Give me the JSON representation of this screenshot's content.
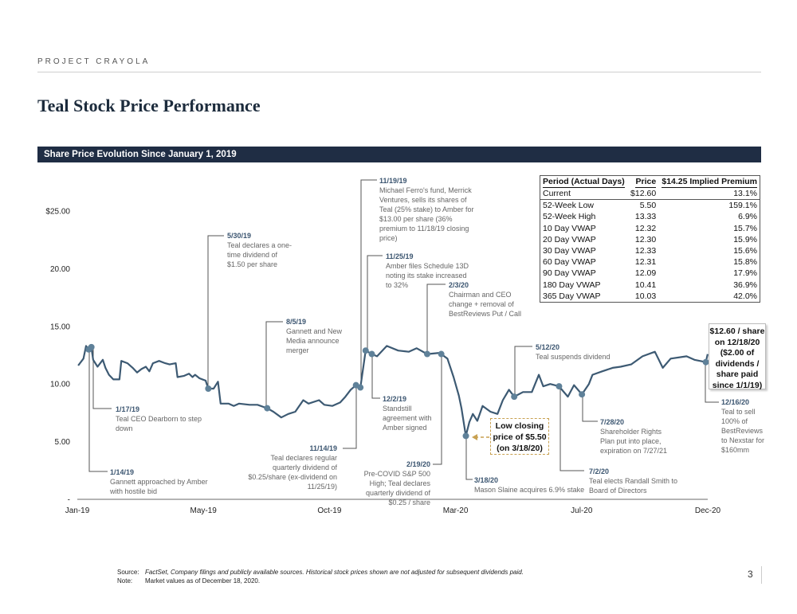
{
  "header": {
    "project": "PROJECT CRAYOLA",
    "title": "Teal Stock Price Performance",
    "section": "Share Price Evolution Since January 1, 2019"
  },
  "chart_data": {
    "type": "line",
    "title": "",
    "xlabel": "",
    "ylabel": "",
    "ylim": [
      0,
      25
    ],
    "xlim": [
      "2019-01-01",
      "2020-12-18"
    ],
    "x_ticks": [
      "Jan-19",
      "May-19",
      "Oct-19",
      "Mar-20",
      "Jul-20",
      "Dec-20"
    ],
    "y_ticks": [
      "-",
      "5.00",
      "10.00",
      "15.00",
      "20.00",
      "$25.00"
    ],
    "grid": false,
    "line_color": "#3d5a73",
    "marker_color": "#5f8199",
    "series": [
      {
        "x": [
          "2019-01-02",
          "2019-01-08",
          "2019-01-11",
          "2019-01-14",
          "2019-01-17",
          "2019-01-19",
          "2019-01-24",
          "2019-01-30",
          "2019-02-02",
          "2019-02-06",
          "2019-02-11",
          "2019-02-18",
          "2019-02-20",
          "2019-02-27",
          "2019-03-05",
          "2019-03-10",
          "2019-03-15",
          "2019-03-20",
          "2019-03-24",
          "2019-03-28",
          "2019-04-04",
          "2019-04-11",
          "2019-04-16",
          "2019-04-23",
          "2019-04-25",
          "2019-05-02",
          "2019-05-08",
          "2019-05-12",
          "2019-05-15",
          "2019-05-20",
          "2019-05-27",
          "2019-05-30",
          "2019-06-05",
          "2019-06-10",
          "2019-06-13",
          "2019-06-22",
          "2019-06-28",
          "2019-07-04",
          "2019-07-16",
          "2019-07-25",
          "2019-08-05",
          "2019-08-12",
          "2019-08-21",
          "2019-08-29",
          "2019-09-06",
          "2019-09-15",
          "2019-09-21",
          "2019-10-03",
          "2019-10-09",
          "2019-10-18",
          "2019-10-27",
          "2019-11-02",
          "2019-11-08",
          "2019-11-14",
          "2019-11-19",
          "2019-11-25",
          "2019-12-02",
          "2019-12-08",
          "2019-12-19",
          "2020-01-01",
          "2020-01-13",
          "2020-01-22",
          "2020-02-03",
          "2020-02-17",
          "2020-02-19",
          "2020-02-26",
          "2020-03-04",
          "2020-03-10",
          "2020-03-13",
          "2020-03-18",
          "2020-03-22",
          "2020-03-26",
          "2020-03-31",
          "2020-04-06",
          "2020-04-15",
          "2020-04-23",
          "2020-04-29",
          "2020-05-06",
          "2020-05-12",
          "2020-05-22",
          "2020-06-01",
          "2020-06-09",
          "2020-06-14",
          "2020-06-22",
          "2020-07-02",
          "2020-07-12",
          "2020-07-19",
          "2020-07-28",
          "2020-08-05",
          "2020-08-09",
          "2020-08-20",
          "2020-09-01",
          "2020-09-10",
          "2020-09-22",
          "2020-10-05",
          "2020-10-19",
          "2020-10-28",
          "2020-11-06",
          "2020-11-24",
          "2020-12-03",
          "2020-12-16",
          "2020-12-18"
        ],
        "y": [
          11.6,
          12.2,
          13.3,
          13.0,
          13.2,
          12.1,
          11.5,
          12.1,
          11.4,
          10.8,
          10.4,
          10.4,
          12.0,
          11.8,
          11.4,
          11.0,
          11.3,
          11.5,
          11.1,
          11.8,
          12.0,
          11.8,
          11.7,
          11.8,
          10.6,
          10.7,
          10.9,
          10.6,
          10.8,
          10.5,
          10.3,
          9.6,
          9.6,
          10.2,
          8.3,
          8.3,
          8.1,
          8.3,
          8.2,
          8.2,
          7.9,
          7.6,
          7.1,
          7.4,
          7.6,
          8.6,
          8.3,
          8.6,
          8.2,
          8.1,
          8.4,
          8.9,
          9.5,
          9.9,
          9.7,
          12.9,
          12.6,
          12.4,
          13.3,
          12.9,
          12.8,
          13.1,
          12.6,
          12.7,
          12.6,
          12.2,
          10.6,
          9.0,
          7.9,
          5.5,
          6.7,
          7.4,
          6.8,
          8.1,
          7.6,
          7.4,
          8.6,
          9.5,
          8.9,
          9.3,
          9.3,
          10.8,
          9.8,
          10.0,
          9.8,
          8.9,
          9.9,
          9.1,
          10.0,
          10.8,
          11.1,
          11.4,
          11.5,
          11.7,
          12.4,
          12.8,
          11.4,
          12.2,
          12.4,
          12.1,
          11.9,
          12.6
        ]
      }
    ],
    "annotations": [
      {
        "date": "1/14/19",
        "x": "2019-01-14",
        "y": 13.0,
        "text": "Gannett approached by Amber with hostile bid"
      },
      {
        "date": "1/17/19",
        "x": "2019-01-17",
        "y": 13.2,
        "text": "Teal CEO Dearborn to step down"
      },
      {
        "date": "5/30/19",
        "x": "2019-05-30",
        "y": 9.6,
        "text": "Teal declares a one-time dividend of $1.50 per share"
      },
      {
        "date": "8/5/19",
        "x": "2019-08-05",
        "y": 7.9,
        "text": "Gannett and New Media announce merger"
      },
      {
        "date": "11/14/19",
        "x": "2019-11-14",
        "y": 9.9,
        "text": "Teal declares regular quarterly dividend of $0.25/share (ex-dividend on 11/25/19)"
      },
      {
        "date": "11/19/19",
        "x": "2019-11-19",
        "y": 9.7,
        "text": "Michael Ferro's fund, Merrick Ventures, sells its shares of Teal (25% stake) to Amber for $13.00 per share (36% premium to 11/18/19 closing price)"
      },
      {
        "date": "11/25/19",
        "x": "2019-11-25",
        "y": 12.9,
        "text": "Amber files Schedule 13D noting its stake increased to 32%"
      },
      {
        "date": "12/2/19",
        "x": "2019-12-02",
        "y": 12.6,
        "text": "Standstill agreement with Amber signed"
      },
      {
        "date": "2/3/20",
        "x": "2020-02-03",
        "y": 12.6,
        "text": "Chairman and CEO change + removal of BestReviews Put / Call"
      },
      {
        "date": "2/19/20",
        "x": "2020-02-19",
        "y": 12.6,
        "text": "Pre-COVID S&P 500 High; Teal declares quarterly dividend of $0.25 / share"
      },
      {
        "date": "3/18/20",
        "x": "2020-03-18",
        "y": 5.5,
        "text": "Mason Slaine acquires 6.9% stake"
      },
      {
        "date": "5/12/20",
        "x": "2020-05-12",
        "y": 8.9,
        "text": "Teal suspends dividend"
      },
      {
        "date": "7/2/20",
        "x": "2020-07-02",
        "y": 9.8,
        "text": "Teal elects Randall Smith to Board of Directors"
      },
      {
        "date": "7/28/20",
        "x": "2020-07-28",
        "y": 9.1,
        "text": "Shareholder Rights Plan put into place, expiration on 7/27/21"
      },
      {
        "date": "12/16/20",
        "x": "2020-12-16",
        "y": 11.9,
        "text": "Teal to sell 100% of BestReviews to Nexstar for $160mm"
      }
    ],
    "callouts": {
      "low": "Low closing price of $5.50 (on 3/18/20)",
      "low_color": "#c8a152",
      "current": "$12.60 / share on 12/18/20 ($2.00 of dividends / share paid since 1/1/19)"
    }
  },
  "table": {
    "headers": [
      "Period (Actual Days)",
      "Price",
      "$14.25 Implied Premium"
    ],
    "rows": [
      [
        "Current",
        "$12.60",
        "13.1%"
      ],
      [
        "52-Week Low",
        "5.50",
        "159.1%"
      ],
      [
        "52-Week High",
        "13.33",
        "6.9%"
      ],
      [
        "10 Day VWAP",
        "12.32",
        "15.7%"
      ],
      [
        "20 Day VWAP",
        "12.30",
        "15.9%"
      ],
      [
        "30 Day VWAP",
        "12.33",
        "15.6%"
      ],
      [
        "60 Day VWAP",
        "12.31",
        "15.8%"
      ],
      [
        "90 Day VWAP",
        "12.09",
        "17.9%"
      ],
      [
        "180 Day VWAP",
        "10.41",
        "36.9%"
      ],
      [
        "365 Day VWAP",
        "10.03",
        "42.0%"
      ]
    ]
  },
  "footer": {
    "source_label": "Source:",
    "source": "FactSet, Company filings and publicly available sources. Historical stock prices shown are not adjusted for subsequent dividends paid.",
    "note_label": "Note:",
    "note": "Market values as of December 18, 2020.",
    "page": "3"
  }
}
